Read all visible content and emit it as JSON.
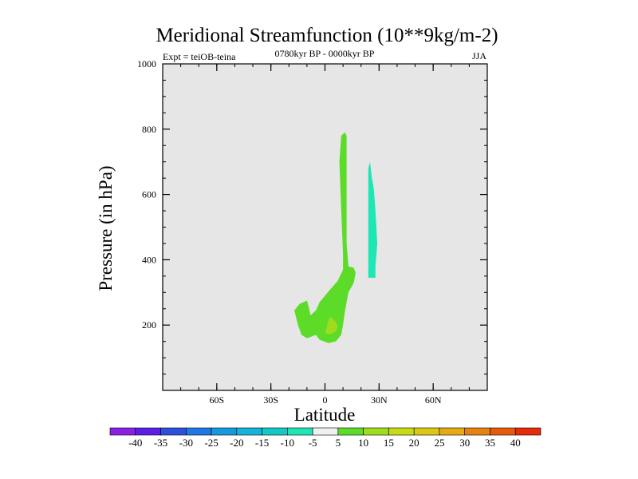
{
  "chart_data": {
    "type": "contour",
    "title": "Meridional Streamfunction (10**9kg/m-2)",
    "left_label": "Expt = teiOB-teina",
    "center_label": "0780kyr BP - 0000kyr BP",
    "right_label": "JJA",
    "xlabel": "Latitude",
    "ylabel": "Pressure (in hPa)",
    "xlim": [
      -90,
      90
    ],
    "ylim": [
      1000,
      0
    ],
    "x_ticks": [
      {
        "value": -60,
        "label": "60S"
      },
      {
        "value": -30,
        "label": "30S"
      },
      {
        "value": 0,
        "label": "0"
      },
      {
        "value": 30,
        "label": "30N"
      },
      {
        "value": 60,
        "label": "60N"
      }
    ],
    "y_ticks": [
      {
        "value": 200,
        "label": "200"
      },
      {
        "value": 400,
        "label": "400"
      },
      {
        "value": 600,
        "label": "600"
      },
      {
        "value": 800,
        "label": "800"
      },
      {
        "value": 1000,
        "label": "1000"
      }
    ],
    "background_fill": "#e6e6e6",
    "regions": [
      {
        "name": "positive-cell",
        "level": "5 to 10",
        "color": "#5cdc28",
        "outline": [
          [
            -15,
            200
          ],
          [
            -13,
            170
          ],
          [
            -10,
            160
          ],
          [
            -5,
            170
          ],
          [
            -3,
            155
          ],
          [
            2,
            145
          ],
          [
            6,
            150
          ],
          [
            9,
            170
          ],
          [
            10,
            200
          ],
          [
            11,
            240
          ],
          [
            13,
            300
          ],
          [
            16,
            330
          ],
          [
            17,
            360
          ],
          [
            16,
            375
          ],
          [
            13,
            380
          ],
          [
            12,
            450
          ],
          [
            12,
            600
          ],
          [
            12,
            780
          ],
          [
            11,
            790
          ],
          [
            9,
            780
          ],
          [
            8,
            700
          ],
          [
            9,
            550
          ],
          [
            10,
            420
          ],
          [
            10,
            370
          ],
          [
            7,
            335
          ],
          [
            3,
            310
          ],
          [
            0,
            290
          ],
          [
            -3,
            270
          ],
          [
            -5,
            245
          ],
          [
            -8,
            230
          ],
          [
            -9,
            255
          ],
          [
            -10,
            275
          ],
          [
            -14,
            265
          ],
          [
            -17,
            245
          ],
          [
            -15,
            200
          ]
        ]
      },
      {
        "name": "positive-core",
        "level": "10 to 15",
        "color": "#9fdc1e",
        "outline": [
          [
            0,
            175
          ],
          [
            3,
            172
          ],
          [
            6,
            180
          ],
          [
            7,
            195
          ],
          [
            6,
            210
          ],
          [
            3,
            225
          ],
          [
            2,
            215
          ],
          [
            1,
            195
          ],
          [
            0,
            175
          ]
        ]
      },
      {
        "name": "negative-cell",
        "level": "-10 to -5",
        "color": "#1ee6b4",
        "outline": [
          [
            24,
            345
          ],
          [
            28,
            345
          ],
          [
            28,
            380
          ],
          [
            29,
            450
          ],
          [
            28,
            550
          ],
          [
            27,
            620
          ],
          [
            26,
            650
          ],
          [
            25,
            700
          ],
          [
            24,
            680
          ],
          [
            24,
            620
          ],
          [
            24,
            450
          ],
          [
            24,
            345
          ]
        ]
      }
    ],
    "colorbar": {
      "labels": [
        "-40",
        "-35",
        "-30",
        "-25",
        "-20",
        "-15",
        "-10",
        "-5",
        "5",
        "10",
        "15",
        "20",
        "25",
        "30",
        "35",
        "40"
      ],
      "colors": [
        "#8c1ee6",
        "#5a1ee6",
        "#2d50dc",
        "#1e78e6",
        "#149bdc",
        "#14b4dc",
        "#14c8c8",
        "#1ee6b4",
        "#f0f0f0",
        "#5cdc28",
        "#9fdc1e",
        "#c8dc14",
        "#dcc814",
        "#e6aa14",
        "#e6820f",
        "#e65a0a",
        "#e62a0a"
      ]
    }
  }
}
